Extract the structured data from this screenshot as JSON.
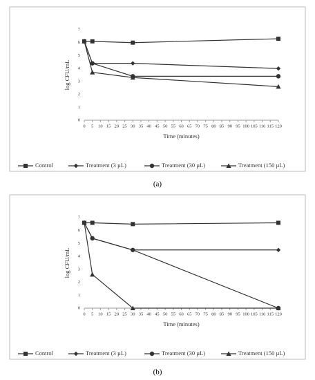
{
  "chart_data": [
    {
      "type": "line",
      "caption": "(a)",
      "x_label": "Time (minutes)",
      "y_label": "log CFU/mL",
      "x": [
        0,
        5,
        30,
        120
      ],
      "series": [
        {
          "name": "Control",
          "color": "#333333",
          "marker": "square",
          "values": [
            6.1,
            6.1,
            6.0,
            6.3
          ]
        },
        {
          "name": "Treatment (3 µL)",
          "color": "#333333",
          "marker": "diamond",
          "values": [
            6.1,
            4.4,
            4.4,
            4.0
          ]
        },
        {
          "name": "Treatment (30 µL)",
          "color": "#333333",
          "marker": "circle",
          "values": [
            6.1,
            4.4,
            3.4,
            3.4
          ]
        },
        {
          "name": "Treatment (150 µL)",
          "color": "#333333",
          "marker": "triangle",
          "values": [
            6.1,
            3.7,
            3.3,
            2.6
          ]
        }
      ],
      "xlim": [
        0,
        120
      ],
      "xticks": [
        0,
        5,
        10,
        15,
        20,
        25,
        30,
        35,
        40,
        45,
        50,
        55,
        60,
        65,
        70,
        75,
        80,
        85,
        90,
        95,
        100,
        105,
        110,
        115,
        120
      ],
      "ylim": [
        0,
        7
      ],
      "yticks": [
        0,
        1,
        2,
        3,
        4,
        5,
        6,
        7
      ],
      "legend": "bottom",
      "grid": false
    },
    {
      "type": "line",
      "caption": "(b)",
      "x_label": "Time (minutes)",
      "y_label": "log CFU/mL",
      "x": [
        0,
        5,
        30,
        120
      ],
      "series": [
        {
          "name": "Control",
          "color": "#333333",
          "marker": "square",
          "values": [
            6.6,
            6.6,
            6.5,
            6.6
          ]
        },
        {
          "name": "Treatment (3 µL)",
          "color": "#333333",
          "marker": "diamond",
          "values": [
            6.6,
            5.4,
            4.5,
            4.5
          ]
        },
        {
          "name": "Treatment (30 µL)",
          "color": "#333333",
          "marker": "circle",
          "values": [
            6.6,
            5.4,
            4.5,
            0
          ]
        },
        {
          "name": "Treatment (150 µL)",
          "color": "#333333",
          "marker": "triangle",
          "values": [
            6.6,
            2.6,
            0,
            0
          ]
        }
      ],
      "xlim": [
        0,
        120
      ],
      "xticks": [
        0,
        5,
        10,
        15,
        20,
        25,
        30,
        35,
        40,
        45,
        50,
        55,
        60,
        65,
        70,
        75,
        80,
        85,
        90,
        95,
        100,
        105,
        110,
        115,
        120
      ],
      "ylim": [
        0,
        7
      ],
      "yticks": [
        0,
        1,
        2,
        3,
        4,
        5,
        6,
        7
      ],
      "legend": "bottom",
      "grid": false
    }
  ]
}
